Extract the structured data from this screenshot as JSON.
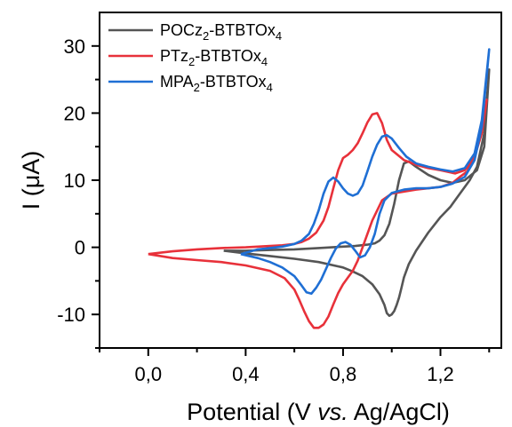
{
  "chart_data": {
    "type": "line",
    "title": "",
    "xlabel": {
      "pre": "Potential (V ",
      "italic": "vs.",
      "post": " Ag/AgCl)"
    },
    "ylabel": {
      "pre": "I (",
      "mu": "μ",
      "post": "A)"
    },
    "xlim": [
      -0.2,
      1.45
    ],
    "ylim": [
      -15,
      35
    ],
    "xticks": [
      0.0,
      0.4,
      0.8,
      1.2
    ],
    "xtick_labels": [
      "0,0",
      "0,4",
      "0,8",
      "1,2"
    ],
    "xminor": [
      -0.2,
      0.2,
      0.6,
      1.0,
      1.4
    ],
    "yticks": [
      -10,
      0,
      10,
      20,
      30
    ],
    "ytick_labels": [
      "-10",
      "0",
      "10",
      "20",
      "30"
    ],
    "yminor": [
      -15,
      -5,
      5,
      15,
      25
    ],
    "grid": false,
    "legend_position": "top-left",
    "series": [
      {
        "name": "POCz2-BTBTOx4",
        "legend": {
          "base1": "POCz",
          "sub1": "2",
          "mid": "-BTBTOx",
          "sub2": "4"
        },
        "color": "#555555",
        "x": [
          0.31,
          0.4,
          0.5,
          0.6,
          0.7,
          0.8,
          0.85,
          0.9,
          0.93,
          0.95,
          0.97,
          0.99,
          1.01,
          1.03,
          1.05,
          1.07,
          1.1,
          1.15,
          1.2,
          1.25,
          1.3,
          1.35,
          1.38,
          1.4,
          1.4,
          1.38,
          1.35,
          1.32,
          1.28,
          1.24,
          1.2,
          1.15,
          1.1,
          1.07,
          1.05,
          1.04,
          1.03,
          1.02,
          1.01,
          1.0,
          0.99,
          0.98,
          0.97,
          0.95,
          0.92,
          0.88,
          0.84,
          0.8,
          0.7,
          0.6,
          0.5,
          0.4,
          0.31
        ],
        "y": [
          -0.5,
          -0.5,
          -0.4,
          -0.3,
          -0.1,
          0.1,
          0.2,
          0.4,
          0.6,
          1.0,
          1.8,
          3.5,
          6.5,
          10.0,
          12.5,
          12.8,
          12.0,
          10.8,
          10.0,
          9.6,
          10.0,
          11.5,
          15.0,
          26.5,
          26.5,
          17.0,
          12.0,
          10.0,
          8.0,
          6.0,
          4.5,
          2.2,
          -0.5,
          -2.5,
          -4.5,
          -6.0,
          -7.5,
          -8.6,
          -9.5,
          -10.0,
          -10.2,
          -9.8,
          -8.6,
          -7.0,
          -5.5,
          -4.3,
          -3.6,
          -3.0,
          -2.2,
          -1.7,
          -1.3,
          -0.9,
          -0.5
        ]
      },
      {
        "name": "PTz2-BTBTOx4",
        "legend": {
          "base1": "PTz",
          "sub1": "2",
          "mid": "-BTBTOx",
          "sub2": "4"
        },
        "color": "#e8313a",
        "x": [
          0.0,
          0.1,
          0.2,
          0.3,
          0.4,
          0.5,
          0.55,
          0.6,
          0.63,
          0.66,
          0.69,
          0.72,
          0.74,
          0.76,
          0.78,
          0.8,
          0.82,
          0.84,
          0.86,
          0.88,
          0.9,
          0.92,
          0.94,
          0.96,
          0.98,
          1.0,
          1.05,
          1.1,
          1.15,
          1.2,
          1.26,
          1.3,
          1.34,
          1.37,
          1.39,
          1.39,
          1.37,
          1.34,
          1.31,
          1.28,
          1.25,
          1.2,
          1.15,
          1.1,
          1.05,
          1.0,
          0.96,
          0.92,
          0.88,
          0.86,
          0.84,
          0.82,
          0.8,
          0.78,
          0.76,
          0.74,
          0.72,
          0.7,
          0.68,
          0.66,
          0.64,
          0.62,
          0.6,
          0.56,
          0.5,
          0.4,
          0.3,
          0.2,
          0.1,
          0.0
        ],
        "y": [
          -1.0,
          -0.6,
          -0.3,
          -0.1,
          0.0,
          0.2,
          0.3,
          0.5,
          0.8,
          1.3,
          2.2,
          4.0,
          6.0,
          8.8,
          11.5,
          13.3,
          13.8,
          14.5,
          15.5,
          17.0,
          18.6,
          19.8,
          20.0,
          18.5,
          16.0,
          14.5,
          13.0,
          12.3,
          11.8,
          11.5,
          11.0,
          11.5,
          13.5,
          17.0,
          22.0,
          22.0,
          17.0,
          13.5,
          11.3,
          10.5,
          9.6,
          9.0,
          8.8,
          8.6,
          8.3,
          8.0,
          7.0,
          4.0,
          0.0,
          -2.0,
          -3.5,
          -4.5,
          -5.5,
          -6.8,
          -8.5,
          -10.3,
          -11.5,
          -12.0,
          -12.0,
          -11.0,
          -9.5,
          -7.8,
          -6.3,
          -4.6,
          -3.5,
          -2.7,
          -2.2,
          -1.9,
          -1.6,
          -1.0
        ]
      },
      {
        "name": "MPA2-BTBTOx4",
        "legend": {
          "base1": "MPA",
          "sub1": "2",
          "mid": "-BTBTOx",
          "sub2": "4"
        },
        "color": "#1f6fd4",
        "x": [
          0.38,
          0.45,
          0.5,
          0.55,
          0.6,
          0.63,
          0.66,
          0.68,
          0.7,
          0.72,
          0.74,
          0.76,
          0.78,
          0.8,
          0.82,
          0.84,
          0.86,
          0.88,
          0.9,
          0.92,
          0.94,
          0.96,
          0.98,
          1.0,
          1.03,
          1.06,
          1.1,
          1.15,
          1.2,
          1.25,
          1.3,
          1.34,
          1.37,
          1.4,
          1.4,
          1.37,
          1.34,
          1.3,
          1.25,
          1.2,
          1.15,
          1.1,
          1.05,
          1.0,
          0.97,
          0.95,
          0.93,
          0.91,
          0.89,
          0.87,
          0.85,
          0.83,
          0.81,
          0.79,
          0.77,
          0.75,
          0.73,
          0.71,
          0.69,
          0.67,
          0.65,
          0.63,
          0.6,
          0.55,
          0.5,
          0.45,
          0.38
        ],
        "y": [
          -1.0,
          -0.3,
          -0.1,
          0.1,
          0.5,
          1.0,
          2.0,
          3.5,
          5.5,
          8.0,
          9.8,
          10.4,
          9.8,
          8.8,
          8.0,
          7.7,
          8.0,
          9.2,
          11.3,
          13.5,
          15.3,
          16.5,
          16.7,
          16.2,
          14.8,
          13.5,
          12.5,
          12.0,
          11.6,
          11.3,
          11.8,
          14.0,
          19.0,
          29.5,
          29.5,
          18.0,
          13.0,
          10.5,
          9.5,
          9.0,
          8.8,
          8.8,
          8.6,
          8.1,
          7.0,
          5.0,
          2.0,
          0.0,
          -1.2,
          -1.5,
          -0.5,
          0.4,
          0.8,
          0.6,
          -0.2,
          -1.6,
          -3.2,
          -4.8,
          -6.0,
          -6.9,
          -6.7,
          -5.7,
          -4.3,
          -3.0,
          -2.2,
          -1.6,
          -1.0
        ]
      }
    ]
  }
}
